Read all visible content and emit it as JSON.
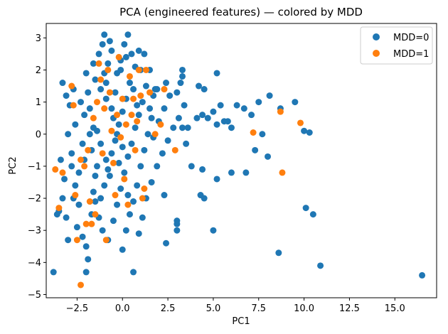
{
  "chart_data": {
    "type": "scatter",
    "title": "PCA (engineered features) — colored by MDD",
    "xlabel": "PC1",
    "ylabel": "PC2",
    "xlim": [
      -4.2,
      17.3
    ],
    "ylim": [
      -5.1,
      3.45
    ],
    "xticks": [
      -2.5,
      0.0,
      2.5,
      5.0,
      7.5,
      10.0,
      12.5,
      15.0
    ],
    "xtick_labels": [
      "−2.5",
      "0.0",
      "2.5",
      "5.0",
      "7.5",
      "10.0",
      "12.5",
      "15.0"
    ],
    "yticks": [
      -5,
      -4,
      -3,
      -2,
      -1,
      0,
      1,
      2,
      3
    ],
    "ytick_labels": [
      "−5",
      "−4",
      "−3",
      "−2",
      "−1",
      "0",
      "1",
      "2",
      "3"
    ],
    "grid": false,
    "legend_position": "top-right",
    "series": [
      {
        "name": "MDD=0",
        "color": "#1f77b4",
        "points": [
          [
            -3.8,
            -4.3
          ],
          [
            -3.5,
            -2.4
          ],
          [
            -3.3,
            -2.0
          ],
          [
            -3.1,
            -2.6
          ],
          [
            -3.0,
            -3.3
          ],
          [
            -3.2,
            -1.4
          ],
          [
            -3.4,
            -0.8
          ],
          [
            -3.0,
            0.0
          ],
          [
            -2.8,
            -0.6
          ],
          [
            -3.3,
            1.6
          ],
          [
            -3.1,
            1.2
          ],
          [
            -2.9,
            0.9
          ],
          [
            -2.7,
            1.4
          ],
          [
            -2.6,
            0.3
          ],
          [
            -2.8,
            -1.0
          ],
          [
            -2.6,
            -1.6
          ],
          [
            -2.4,
            -2.2
          ],
          [
            -2.5,
            -2.9
          ],
          [
            -2.2,
            -3.2
          ],
          [
            -2.0,
            -3.5
          ],
          [
            -1.9,
            -3.9
          ],
          [
            -2.0,
            -4.3
          ],
          [
            -1.7,
            -2.5
          ],
          [
            -1.6,
            -1.8
          ],
          [
            -1.5,
            -1.3
          ],
          [
            -1.7,
            -0.5
          ],
          [
            -1.6,
            0.2
          ],
          [
            -1.8,
            0.8
          ],
          [
            -1.9,
            1.3
          ],
          [
            -1.5,
            1.7
          ],
          [
            -1.6,
            2.2
          ],
          [
            -1.3,
            2.5
          ],
          [
            -1.1,
            2.8
          ],
          [
            -1.0,
            3.1
          ],
          [
            -0.7,
            2.9
          ],
          [
            -0.6,
            2.6
          ],
          [
            -0.8,
            2.2
          ],
          [
            -1.0,
            1.9
          ],
          [
            -1.2,
            1.4
          ],
          [
            -0.9,
            1.1
          ],
          [
            -0.6,
            0.8
          ],
          [
            -0.4,
            1.3
          ],
          [
            -0.3,
            1.9
          ],
          [
            -0.1,
            2.3
          ],
          [
            0.1,
            2.8
          ],
          [
            0.3,
            3.1
          ],
          [
            0.5,
            2.5
          ],
          [
            0.7,
            2.1
          ],
          [
            0.4,
            1.6
          ],
          [
            0.2,
            1.1
          ],
          [
            0.0,
            0.7
          ],
          [
            -0.2,
            0.3
          ],
          [
            -0.4,
            -0.2
          ],
          [
            -0.6,
            -0.6
          ],
          [
            -0.8,
            -1.1
          ],
          [
            -1.0,
            -1.6
          ],
          [
            -1.2,
            -2.0
          ],
          [
            -1.3,
            -2.6
          ],
          [
            -1.1,
            -3.0
          ],
          [
            -0.8,
            -3.3
          ],
          [
            -0.5,
            -2.7
          ],
          [
            -0.3,
            -2.2
          ],
          [
            -0.1,
            -1.7
          ],
          [
            0.1,
            -1.2
          ],
          [
            0.3,
            -0.7
          ],
          [
            0.5,
            -0.3
          ],
          [
            0.7,
            0.2
          ],
          [
            0.9,
            0.6
          ],
          [
            1.1,
            1.0
          ],
          [
            1.3,
            1.5
          ],
          [
            1.0,
            2.0
          ],
          [
            0.9,
            2.6
          ],
          [
            1.2,
            2.5
          ],
          [
            1.5,
            2.0
          ],
          [
            1.7,
            1.2
          ],
          [
            1.6,
            0.5
          ],
          [
            1.4,
            0.0
          ],
          [
            1.2,
            -0.5
          ],
          [
            1.0,
            -1.0
          ],
          [
            0.8,
            -1.6
          ],
          [
            0.6,
            -2.1
          ],
          [
            0.4,
            -2.5
          ],
          [
            0.2,
            -3.0
          ],
          [
            0.0,
            -3.6
          ],
          [
            0.6,
            -4.3
          ],
          [
            0.9,
            -3.1
          ],
          [
            1.1,
            -2.6
          ],
          [
            1.3,
            -2.0
          ],
          [
            1.6,
            -1.5
          ],
          [
            1.9,
            -1.0
          ],
          [
            2.2,
            -0.6
          ],
          [
            2.5,
            -0.2
          ],
          [
            2.8,
            0.2
          ],
          [
            3.1,
            0.5
          ],
          [
            3.4,
            0.9
          ],
          [
            2.6,
            1.2
          ],
          [
            2.3,
            0.8
          ],
          [
            2.0,
            0.4
          ],
          [
            1.8,
            1.4
          ],
          [
            2.4,
            1.6
          ],
          [
            3.0,
            1.3
          ],
          [
            3.3,
            1.8
          ],
          [
            3.2,
            1.6
          ],
          [
            4.2,
            1.5
          ],
          [
            4.5,
            1.4
          ],
          [
            4.1,
            0.5
          ],
          [
            4.4,
            0.6
          ],
          [
            3.8,
            -1.0
          ],
          [
            3.5,
            -0.3
          ],
          [
            3.3,
            0.2
          ],
          [
            3.6,
            0.2
          ],
          [
            4.7,
            0.5
          ],
          [
            5.0,
            0.7
          ],
          [
            5.2,
            0.3
          ],
          [
            5.4,
            0.9
          ],
          [
            5.6,
            0.4
          ],
          [
            5.8,
            0.4
          ],
          [
            6.0,
            0.2
          ],
          [
            6.3,
            0.9
          ],
          [
            6.7,
            0.8
          ],
          [
            7.1,
            0.6
          ],
          [
            7.5,
            1.0
          ],
          [
            8.1,
            1.2
          ],
          [
            8.7,
            0.8
          ],
          [
            9.5,
            1.0
          ],
          [
            10.0,
            0.1
          ],
          [
            10.3,
            0.05
          ],
          [
            7.7,
            0.0
          ],
          [
            7.3,
            -0.5
          ],
          [
            8.0,
            -0.7
          ],
          [
            6.8,
            -1.2
          ],
          [
            6.0,
            -1.2
          ],
          [
            5.2,
            -1.4
          ],
          [
            4.4,
            -1.1
          ],
          [
            4.5,
            -2.0
          ],
          [
            4.3,
            -1.9
          ],
          [
            5.0,
            -3.0
          ],
          [
            3.0,
            -2.7
          ],
          [
            3.0,
            -3.0
          ],
          [
            2.4,
            -3.4
          ],
          [
            3.0,
            -2.8
          ],
          [
            2.3,
            -1.9
          ],
          [
            8.6,
            -3.7
          ],
          [
            10.1,
            -2.3
          ],
          [
            10.5,
            -2.5
          ],
          [
            10.9,
            -4.1
          ],
          [
            16.5,
            -4.4
          ],
          [
            5.2,
            1.9
          ],
          [
            3.3,
            2.0
          ],
          [
            1.9,
            1.4
          ],
          [
            -0.3,
            0.0
          ],
          [
            -0.5,
            0.5
          ],
          [
            -2.1,
            0.6
          ],
          [
            -2.3,
            1.0
          ],
          [
            -2.0,
            1.9
          ],
          [
            -1.4,
            0.1
          ],
          [
            -1.2,
            -0.3
          ],
          [
            -0.9,
            -0.8
          ],
          [
            -0.7,
            -1.3
          ],
          [
            -0.2,
            -0.9
          ],
          [
            0.0,
            -0.4
          ],
          [
            0.6,
            1.4
          ],
          [
            1.5,
            0.8
          ],
          [
            -2.4,
            -1.2
          ],
          [
            -2.2,
            -0.3
          ],
          [
            -2.7,
            -2.0
          ],
          [
            -3.6,
            -2.5
          ],
          [
            -1.4,
            -1.0
          ],
          [
            -0.1,
            2.0
          ],
          [
            0.2,
            2.4
          ],
          [
            -0.9,
            1.6
          ],
          [
            -1.8,
            0.0
          ],
          [
            -2.1,
            -0.8
          ],
          [
            0.8,
            0.9
          ],
          [
            1.7,
            -0.1
          ],
          [
            0.3,
            -1.9
          ],
          [
            -1.5,
            -2.1
          ]
        ]
      },
      {
        "name": "MDD=1",
        "color": "#ff7f0e",
        "points": [
          [
            -3.7,
            -1.1
          ],
          [
            -3.5,
            -2.3
          ],
          [
            -3.3,
            -1.2
          ],
          [
            -2.8,
            1.5
          ],
          [
            -2.7,
            0.9
          ],
          [
            -2.6,
            -1.9
          ],
          [
            -2.3,
            -0.8
          ],
          [
            -2.1,
            -1.0
          ],
          [
            -2.0,
            -2.8
          ],
          [
            -2.3,
            -4.7
          ],
          [
            -1.8,
            -2.1
          ],
          [
            -1.6,
            0.5
          ],
          [
            -1.5,
            -2.5
          ],
          [
            -1.4,
            1.0
          ],
          [
            -1.3,
            2.2
          ],
          [
            -1.2,
            1.7
          ],
          [
            -1.1,
            -0.6
          ],
          [
            -1.0,
            0.8
          ],
          [
            -0.9,
            -3.3
          ],
          [
            -0.8,
            2.0
          ],
          [
            -0.7,
            1.3
          ],
          [
            -0.6,
            0.1
          ],
          [
            -0.5,
            -0.9
          ],
          [
            -0.4,
            -1.9
          ],
          [
            -0.3,
            0.6
          ],
          [
            -0.2,
            2.4
          ],
          [
            -0.1,
            -0.1
          ],
          [
            0.0,
            1.1
          ],
          [
            0.1,
            -1.4
          ],
          [
            0.2,
            0.3
          ],
          [
            0.3,
            -2.2
          ],
          [
            0.4,
            1.8
          ],
          [
            0.5,
            0.6
          ],
          [
            0.6,
            1.1
          ],
          [
            0.7,
            -0.5
          ],
          [
            0.8,
            0.4
          ],
          [
            0.9,
            2.0
          ],
          [
            1.0,
            1.2
          ],
          [
            1.1,
            -2.0
          ],
          [
            1.2,
            -1.7
          ],
          [
            1.3,
            2.0
          ],
          [
            1.5,
            1.3
          ],
          [
            1.8,
            0.0
          ],
          [
            2.1,
            0.3
          ],
          [
            2.3,
            1.4
          ],
          [
            2.9,
            -0.5
          ],
          [
            7.2,
            0.05
          ],
          [
            8.7,
            0.7
          ],
          [
            8.8,
            -1.2
          ],
          [
            9.8,
            0.35
          ],
          [
            -2.5,
            -3.3
          ],
          [
            -1.9,
            -0.5
          ],
          [
            -1.7,
            -2.8
          ]
        ]
      }
    ]
  }
}
